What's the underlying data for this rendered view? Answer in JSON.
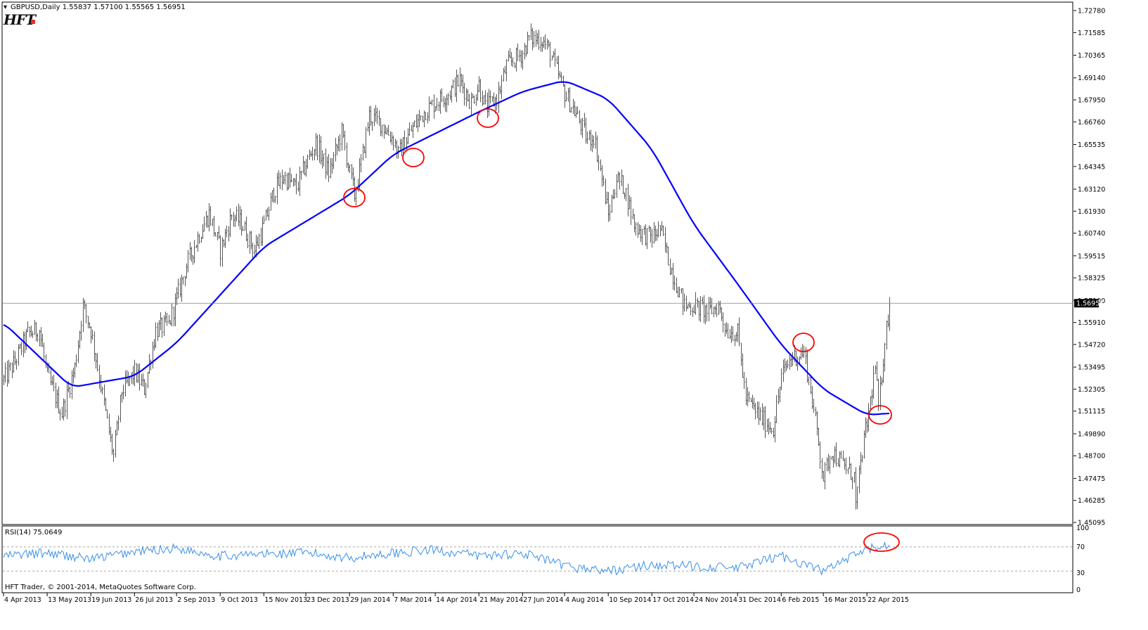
{
  "header": {
    "symbol_timeframe": "GBPUSD,Daily",
    "open": "1.55837",
    "high": "1.57100",
    "low": "1.55565",
    "close": "1.56951",
    "logo_text": "HFT",
    "logo_dot_color": "#e53030"
  },
  "indicator": {
    "label": "RSI(14) 75.0649",
    "levels": [
      "100",
      "70",
      "30",
      "0"
    ]
  },
  "footer": {
    "copyright": "HFT Trader, © 2001-2014, MetaQuotes Software Corp."
  },
  "current_price_label": "1.56951",
  "colors": {
    "bars": "#555555",
    "ma": "#0000ff",
    "rsi": "#3a8fe8",
    "circles": "#ff0000",
    "price_label_bg": "#000000"
  },
  "chart_data": [
    {
      "type": "ohlc-bar",
      "title": "GBPUSD,Daily",
      "price_ticks": [
        "1.72780",
        "1.71585",
        "1.70365",
        "1.69140",
        "1.67950",
        "1.66760",
        "1.65535",
        "1.64345",
        "1.63120",
        "1.61930",
        "1.60740",
        "1.59515",
        "1.58325",
        "1.57100",
        "1.55910",
        "1.54720",
        "1.53495",
        "1.52305",
        "1.51115",
        "1.49890",
        "1.48700",
        "1.47475",
        "1.46285",
        "1.45095"
      ],
      "date_ticks": [
        "4 Apr 2013",
        "13 May 2013",
        "19 Jun 2013",
        "26 Jul 2013",
        "2 Sep 2013",
        "9 Oct 2013",
        "15 Nov 2013",
        "23 Dec 2013",
        "29 Jan 2014",
        "7 Mar 2014",
        "14 Apr 2014",
        "21 May 2014",
        "27 Jun 2014",
        "4 Aug 2014",
        "10 Sep 2014",
        "17 Oct 2014",
        "24 Nov 2014",
        "31 Dec 2014",
        "6 Feb 2015",
        "16 Mar 2015",
        "22 Apr 2015"
      ],
      "ylim": [
        1.45095,
        1.7278
      ],
      "price_path": [
        [
          "4 Apr 2013",
          1.528
        ],
        [
          "15 Apr 2013",
          1.538
        ],
        [
          "25 Apr 2013",
          1.553
        ],
        [
          "5 May 2013",
          1.555
        ],
        [
          "13 May 2013",
          1.53
        ],
        [
          "24 May 2013",
          1.51
        ],
        [
          "5 Jun 2013",
          1.535
        ],
        [
          "12 Jun 2013",
          1.568
        ],
        [
          "19 Jun 2013",
          1.555
        ],
        [
          "27 Jun 2013",
          1.525
        ],
        [
          "5 Jul 2013",
          1.495
        ],
        [
          "9 Jul 2013",
          1.487
        ],
        [
          "16 Jul 2013",
          1.522
        ],
        [
          "26 Jul 2013",
          1.532
        ],
        [
          "5 Aug 2013",
          1.523
        ],
        [
          "14 Aug 2013",
          1.555
        ],
        [
          "24 Aug 2013",
          1.558
        ],
        [
          "2 Sep 2013",
          1.572
        ],
        [
          "10 Sep 2013",
          1.59
        ],
        [
          "20 Sep 2013",
          1.607
        ],
        [
          "30 Sep 2013",
          1.618
        ],
        [
          "9 Oct 2013",
          1.598
        ],
        [
          "18 Oct 2013",
          1.617
        ],
        [
          "28 Oct 2013",
          1.613
        ],
        [
          "7 Nov 2013",
          1.598
        ],
        [
          "15 Nov 2013",
          1.612
        ],
        [
          "24 Nov 2013",
          1.63
        ],
        [
          "3 Dec 2013",
          1.638
        ],
        [
          "13 Dec 2013",
          1.632
        ],
        [
          "23 Dec 2013",
          1.645
        ],
        [
          "31 Dec 2013",
          1.656
        ],
        [
          "10 Jan 2014",
          1.64
        ],
        [
          "22 Jan 2014",
          1.662
        ],
        [
          "29 Jan 2014",
          1.64
        ],
        [
          "3 Feb 2014",
          1.628
        ],
        [
          "7 Feb 2014",
          1.645
        ],
        [
          "14 Feb 2014",
          1.671
        ],
        [
          "25 Feb 2014",
          1.667
        ],
        [
          "7 Mar 2014",
          1.658
        ],
        [
          "12 Mar 2014",
          1.65
        ],
        [
          "24 Mar 2014",
          1.663
        ],
        [
          "3 Apr 2014",
          1.673
        ],
        [
          "14 Apr 2014",
          1.678
        ],
        [
          "24 Apr 2014",
          1.683
        ],
        [
          "5 May 2014",
          1.69
        ],
        [
          "14 May 2014",
          1.678
        ],
        [
          "21 May 2014",
          1.688
        ],
        [
          "27 May 2014",
          1.675
        ],
        [
          "5 Jun 2014",
          1.68
        ],
        [
          "13 Jun 2014",
          1.698
        ],
        [
          "27 Jun 2014",
          1.705
        ],
        [
          "3 Jul 2014",
          1.713
        ],
        [
          "15 Jul 2014",
          1.712
        ],
        [
          "22 Jul 2014",
          1.705
        ],
        [
          "4 Aug 2014",
          1.683
        ],
        [
          "14 Aug 2014",
          1.67
        ],
        [
          "22 Aug 2014",
          1.658
        ],
        [
          "28 Aug 2014",
          1.66
        ],
        [
          "4 Sep 2014",
          1.637
        ],
        [
          "10 Sep 2014",
          1.617
        ],
        [
          "17 Sep 2014",
          1.637
        ],
        [
          "24 Sep 2014",
          1.632
        ],
        [
          "2 Oct 2014",
          1.612
        ],
        [
          "10 Oct 2014",
          1.607
        ],
        [
          "17 Oct 2014",
          1.605
        ],
        [
          "24 Oct 2014",
          1.61
        ],
        [
          "3 Nov 2014",
          1.59
        ],
        [
          "14 Nov 2014",
          1.568
        ],
        [
          "24 Nov 2014",
          1.568
        ],
        [
          "5 Dec 2014",
          1.565
        ],
        [
          "14 Dec 2014",
          1.568
        ],
        [
          "22 Dec 2014",
          1.555
        ],
        [
          "31 Dec 2014",
          1.553
        ],
        [
          "7 Jan 2015",
          1.518
        ],
        [
          "16 Jan 2015",
          1.51
        ],
        [
          "23 Jan 2015",
          1.505
        ],
        [
          "30 Jan 2015",
          1.502
        ],
        [
          "6 Feb 2015",
          1.53
        ],
        [
          "16 Feb 2015",
          1.54
        ],
        [
          "26 Feb 2015",
          1.543
        ],
        [
          "3 Mar 2015",
          1.528
        ],
        [
          "10 Mar 2015",
          1.5
        ],
        [
          "16 Mar 2015",
          1.475
        ],
        [
          "23 Mar 2015",
          1.49
        ],
        [
          "1 Apr 2015",
          1.482
        ],
        [
          "10 Apr 2015",
          1.476
        ],
        [
          "13 Apr 2015",
          1.46
        ],
        [
          "17 Apr 2015",
          1.49
        ],
        [
          "22 Apr 2015",
          1.505
        ],
        [
          "29 Apr 2015",
          1.535
        ],
        [
          "1 May 2015",
          1.512
        ],
        [
          "7 May 2015",
          1.55
        ],
        [
          "12 May 2015",
          1.569
        ]
      ],
      "moving_average": [
        [
          "4 Apr 2013",
          1.559
        ],
        [
          "3 Jun 2013",
          1.524
        ],
        [
          "26 Jul 2013",
          1.53
        ],
        [
          "2 Sep 2013",
          1.548
        ],
        [
          "15 Nov 2013",
          1.6
        ],
        [
          "29 Jan 2014",
          1.628
        ],
        [
          "7 Mar 2014",
          1.65
        ],
        [
          "21 May 2014",
          1.673
        ],
        [
          "27 Jun 2014",
          1.684
        ],
        [
          "4 Aug 2014",
          1.69
        ],
        [
          "10 Sep 2014",
          1.68
        ],
        [
          "17 Oct 2014",
          1.653
        ],
        [
          "24 Nov 2014",
          1.612
        ],
        [
          "31 Dec 2014",
          1.58
        ],
        [
          "6 Feb 2015",
          1.547
        ],
        [
          "16 Mar 2015",
          1.523
        ],
        [
          "22 Apr 2015",
          1.509
        ],
        [
          "12 May 2015",
          1.51
        ]
      ],
      "current_price": 1.56951
    },
    {
      "type": "line",
      "title": "RSI(14) 75.0649",
      "ylim": [
        0,
        100
      ],
      "levels": [
        70,
        30
      ],
      "rsi_path": [
        [
          "4 Apr 2013",
          55
        ],
        [
          "13 May 2013",
          60
        ],
        [
          "19 Jun 2013",
          50
        ],
        [
          "26 Jul 2013",
          62
        ],
        [
          "2 Sep 2013",
          68
        ],
        [
          "9 Oct 2013",
          55
        ],
        [
          "15 Nov 2013",
          58
        ],
        [
          "23 Dec 2013",
          60
        ],
        [
          "29 Jan 2014",
          52
        ],
        [
          "7 Mar 2014",
          60
        ],
        [
          "14 Apr 2014",
          65
        ],
        [
          "21 May 2014",
          55
        ],
        [
          "27 Jun 2014",
          60
        ],
        [
          "4 Aug 2014",
          38
        ],
        [
          "10 Sep 2014",
          30
        ],
        [
          "17 Oct 2014",
          40
        ],
        [
          "24 Nov 2014",
          38
        ],
        [
          "31 Dec 2014",
          35
        ],
        [
          "6 Feb 2015",
          55
        ],
        [
          "16 Mar 2015",
          30
        ],
        [
          "22 Apr 2015",
          65
        ],
        [
          "12 May 2015",
          75
        ]
      ]
    }
  ]
}
